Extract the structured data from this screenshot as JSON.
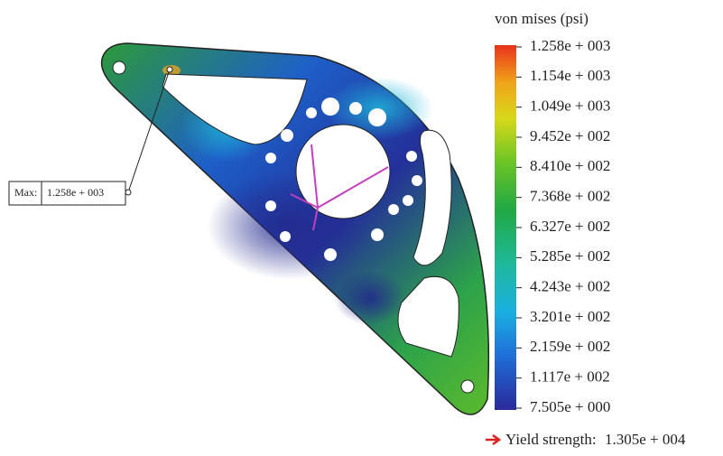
{
  "legend": {
    "title": "von mises (psi)",
    "labels": [
      "1.258e + 003",
      "1.154e + 003",
      "1.049e + 003",
      "9.452e + 002",
      "8.410e + 002",
      "7.368e + 002",
      "6.327e + 002",
      "5.285e + 002",
      "4.243e + 002",
      "3.201e + 002",
      "2.159e + 002",
      "1.117e + 002",
      "7.505e + 000"
    ]
  },
  "max_label": {
    "label": "Max:",
    "value": "1.258e + 003"
  },
  "yield_strength": {
    "label": "Yield strength:",
    "value": "1.305e + 004"
  }
}
